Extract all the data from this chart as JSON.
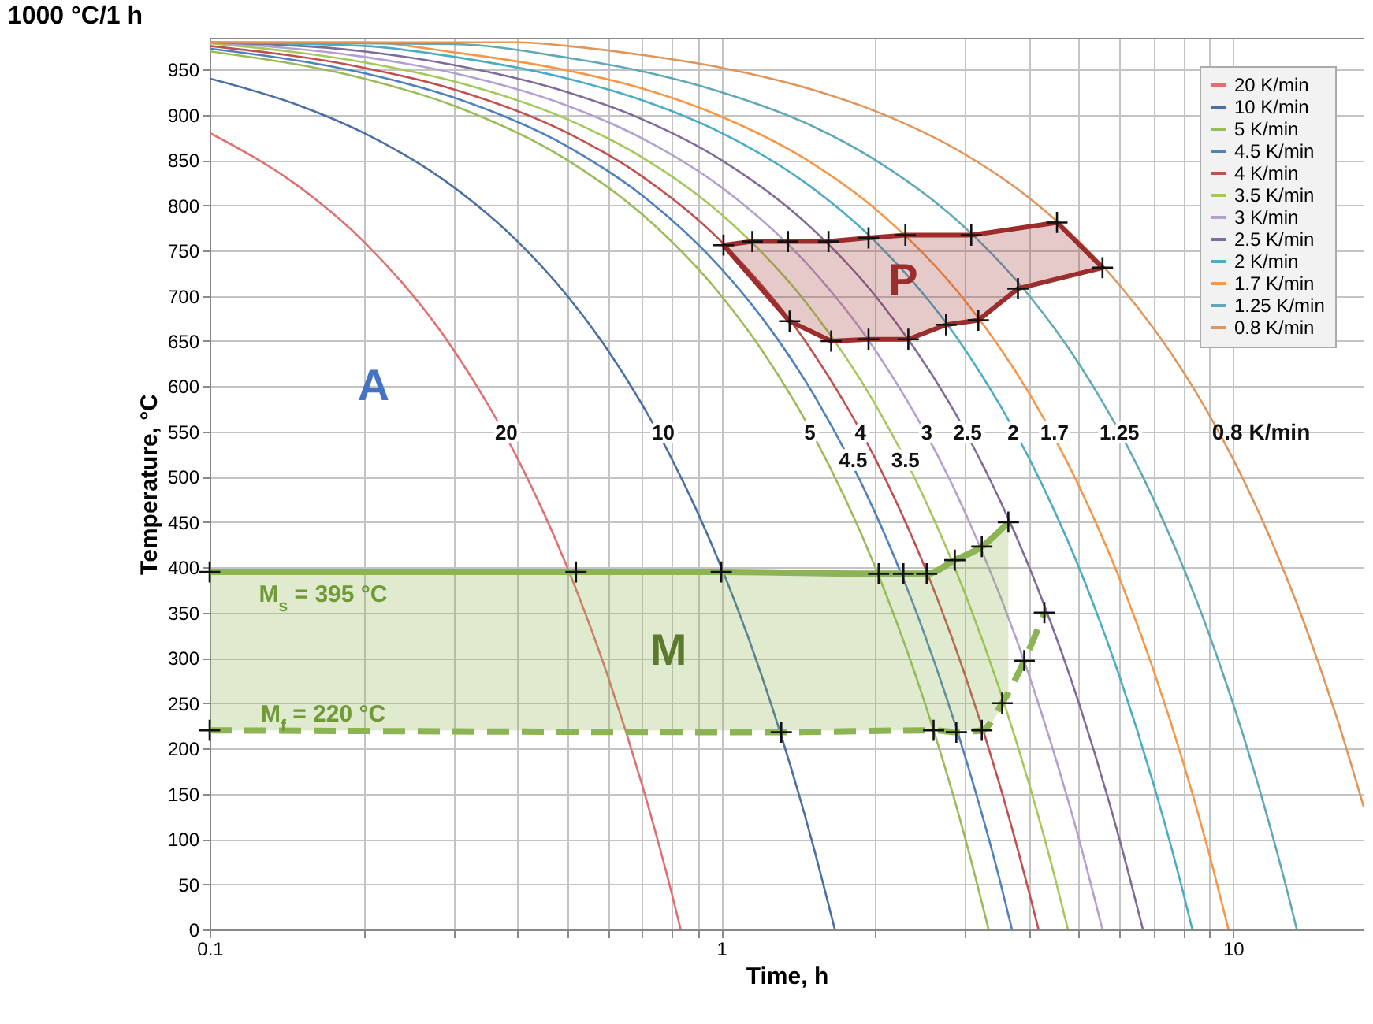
{
  "chart_data": {
    "type": "line",
    "title": "1000 °C/1 h",
    "xlabel": "Time, h",
    "ylabel": "Temperature, °C",
    "log": "x",
    "xlim": [
      0.1,
      18
    ],
    "xticks": [
      0.1,
      {
        "value": 0.2,
        "label": null
      },
      {
        "value": 0.3,
        "label": null
      },
      {
        "value": 0.4,
        "label": null
      },
      {
        "value": 0.5,
        "label": null
      },
      {
        "value": 0.6,
        "label": null
      },
      {
        "value": 0.7,
        "label": null
      },
      {
        "value": 0.8,
        "label": null
      },
      {
        "value": 0.9,
        "label": null
      },
      1,
      {
        "value": 2,
        "label": null
      },
      {
        "value": 3,
        "label": null
      },
      {
        "value": 4,
        "label": null
      },
      {
        "value": 5,
        "label": null
      },
      {
        "value": 6,
        "label": null
      },
      {
        "value": 7,
        "label": null
      },
      {
        "value": 8,
        "label": null
      },
      {
        "value": 9,
        "label": null
      },
      10
    ],
    "ylim": [
      0,
      985
    ],
    "yticks": [
      0,
      50,
      100,
      150,
      200,
      250,
      300,
      350,
      400,
      450,
      500,
      550,
      600,
      650,
      700,
      750,
      800,
      850,
      900,
      950
    ],
    "grid": true,
    "legend": "top right",
    "series": [
      {
        "name": "20 K/min",
        "color": "#e07070",
        "x": [
          0.1,
          0.15,
          0.2,
          0.3,
          0.4,
          0.5,
          0.6,
          0.7,
          0.8,
          0.833
        ],
        "values": [
          880,
          820,
          760,
          640,
          520,
          400,
          280,
          160,
          40,
          0
        ]
      },
      {
        "name": "10 K/min",
        "color": "#4a6fa5",
        "x": [
          0.1,
          0.15,
          0.2,
          0.3,
          0.4,
          0.5,
          0.6,
          0.7,
          0.8,
          1,
          1.2,
          1.5,
          1.667
        ],
        "values": [
          940,
          910,
          880,
          820,
          760,
          700,
          640,
          580,
          520,
          400,
          280,
          100,
          0
        ]
      },
      {
        "name": "5 K/min",
        "color": "#9bbb59",
        "x": [
          0.1,
          0.2,
          0.3,
          0.5,
          0.7,
          1,
          1.2,
          1.5,
          2,
          2.5,
          3,
          3.33
        ],
        "values": [
          970,
          940,
          910,
          850,
          790,
          700,
          640,
          550,
          400,
          250,
          100,
          0
        ]
      },
      {
        "name": "4.5 K/min",
        "color": "#4f81bd",
        "x": [
          0.1,
          0.2,
          0.3,
          0.5,
          0.7,
          1,
          1.2,
          1.5,
          2,
          2.5,
          3,
          3.5,
          3.7
        ],
        "values": [
          973,
          946,
          919,
          865,
          811,
          730,
          676,
          595,
          460,
          325,
          190,
          55,
          0
        ]
      },
      {
        "name": "4 K/min",
        "color": "#c0504d",
        "x": [
          0.1,
          0.2,
          0.3,
          0.5,
          0.7,
          1,
          1.5,
          2,
          2.5,
          3,
          3.5,
          4,
          4.17
        ],
        "values": [
          976,
          952,
          928,
          880,
          832,
          760,
          640,
          520,
          400,
          280,
          160,
          40,
          0
        ]
      },
      {
        "name": "3.5 K/min",
        "color": "#a5c85a",
        "x": [
          0.1,
          0.2,
          0.3,
          0.5,
          0.7,
          1,
          1.5,
          2,
          2.5,
          3,
          3.5,
          4,
          4.5,
          4.76
        ],
        "values": [
          979,
          958,
          937,
          895,
          853,
          790,
          685,
          580,
          475,
          370,
          265,
          160,
          55,
          0
        ]
      },
      {
        "name": "3 K/min",
        "color": "#b4a0d0",
        "x": [
          0.1,
          0.2,
          0.3,
          0.5,
          0.7,
          1,
          1.5,
          2,
          3,
          4,
          5,
          5.56
        ],
        "values": [
          980,
          964,
          946,
          910,
          874,
          820,
          730,
          640,
          460,
          280,
          100,
          0
        ]
      },
      {
        "name": "2.5 K/min",
        "color": "#7f6a9a",
        "x": [
          0.1,
          0.2,
          0.3,
          0.5,
          0.7,
          1,
          1.5,
          2,
          3,
          4,
          5,
          6,
          6.67
        ],
        "values": [
          980,
          970,
          955,
          925,
          895,
          850,
          775,
          700,
          550,
          400,
          250,
          100,
          0
        ]
      },
      {
        "name": "2 K/min",
        "color": "#4bacc6",
        "x": [
          0.1,
          0.2,
          0.3,
          0.5,
          0.7,
          1,
          1.5,
          2,
          3,
          4,
          5,
          6,
          7,
          8,
          8.33
        ],
        "values": [
          980,
          976,
          964,
          940,
          916,
          880,
          820,
          760,
          640,
          520,
          400,
          280,
          160,
          40,
          0
        ]
      },
      {
        "name": "1.7 K/min",
        "color": "#f79646",
        "x": [
          0.1,
          0.2,
          0.3,
          0.5,
          0.7,
          1,
          1.5,
          2,
          3,
          4,
          5,
          6,
          7,
          8,
          9,
          9.8
        ],
        "values": [
          980,
          980,
          969,
          949,
          929,
          898,
          847,
          796,
          694,
          592,
          490,
          388,
          286,
          184,
          82,
          0
        ]
      },
      {
        "name": "1.25 K/min",
        "color": "#5fa8b8",
        "x": [
          0.1,
          0.3,
          0.5,
          0.7,
          1,
          1.5,
          2,
          3,
          4,
          5,
          7,
          9,
          11,
          13,
          13.33
        ],
        "values": [
          980,
          978,
          963,
          948,
          925,
          888,
          850,
          775,
          700,
          625,
          475,
          325,
          175,
          25,
          0
        ]
      },
      {
        "name": "0.8 K/min",
        "color": "#e0955a",
        "x": [
          0.1,
          0.4,
          0.5,
          0.7,
          1,
          1.5,
          2,
          3,
          4,
          6,
          8,
          10,
          12,
          14,
          16,
          18
        ],
        "values": [
          980,
          980,
          976,
          966,
          952,
          928,
          904,
          856,
          808,
          712,
          616,
          520,
          424,
          328,
          232,
          136
        ]
      },
      {
        "color": "#8cb454",
        "marker": "cross",
        "x": [
          0.1,
          0.52,
          1.0,
          2.03,
          2.27,
          2.52,
          2.86,
          3.23,
          3.64
        ],
        "values": [
          395,
          395,
          395,
          393,
          393,
          393,
          408,
          423,
          450
        ],
        "lower": [
          220,
          220,
          220,
          220,
          220,
          220,
          220,
          220,
          265
        ],
        "upper": [
          395,
          395,
          395,
          393,
          393,
          393,
          408,
          423,
          450
        ]
      },
      {
        "color": "#8cb454",
        "marker": "cross",
        "line_style": "dashed",
        "x": [
          0.1,
          1.31,
          2.6,
          2.88,
          3.23,
          3.54,
          3.91,
          4.28
        ],
        "values": [
          220,
          218,
          220,
          218,
          220,
          250,
          297,
          350
        ]
      },
      {
        "type": "area",
        "color": "#9b2d2d",
        "marker": "cross",
        "x": [
          1.01,
          1.15,
          1.35,
          1.62,
          1.94,
          2.29,
          3.08,
          4.53,
          5.56,
          3.8,
          3.18,
          2.75,
          2.32,
          1.94,
          1.64,
          1.36
        ],
        "values": [
          756,
          760,
          760,
          760,
          764,
          767,
          767,
          781,
          731,
          708,
          673,
          668,
          652,
          652,
          650,
          672
        ]
      }
    ],
    "annotations": [
      {
        "text": "20",
        "x": 0.38,
        "y": 548
      },
      {
        "text": "10",
        "x": 0.77,
        "y": 548
      },
      {
        "text": "5",
        "x": 1.49,
        "y": 548
      },
      {
        "text": "4",
        "x": 1.87,
        "y": 548
      },
      {
        "text": "4.5",
        "x": 1.81,
        "y": 518
      },
      {
        "text": "3.5",
        "x": 2.29,
        "y": 518
      },
      {
        "text": "3",
        "x": 2.52,
        "y": 548
      },
      {
        "text": "2.5",
        "x": 3.03,
        "y": 548
      },
      {
        "text": "2",
        "x": 3.72,
        "y": 548
      },
      {
        "text": "1.7",
        "x": 4.48,
        "y": 548
      },
      {
        "text": "1.25",
        "x": 6.0,
        "y": 548
      },
      "0.8 K/min",
      "A",
      "P",
      "M",
      "M$_{s}$ = 395 °C",
      "M$_{f}$ = 220 °C"
    ]
  }
}
